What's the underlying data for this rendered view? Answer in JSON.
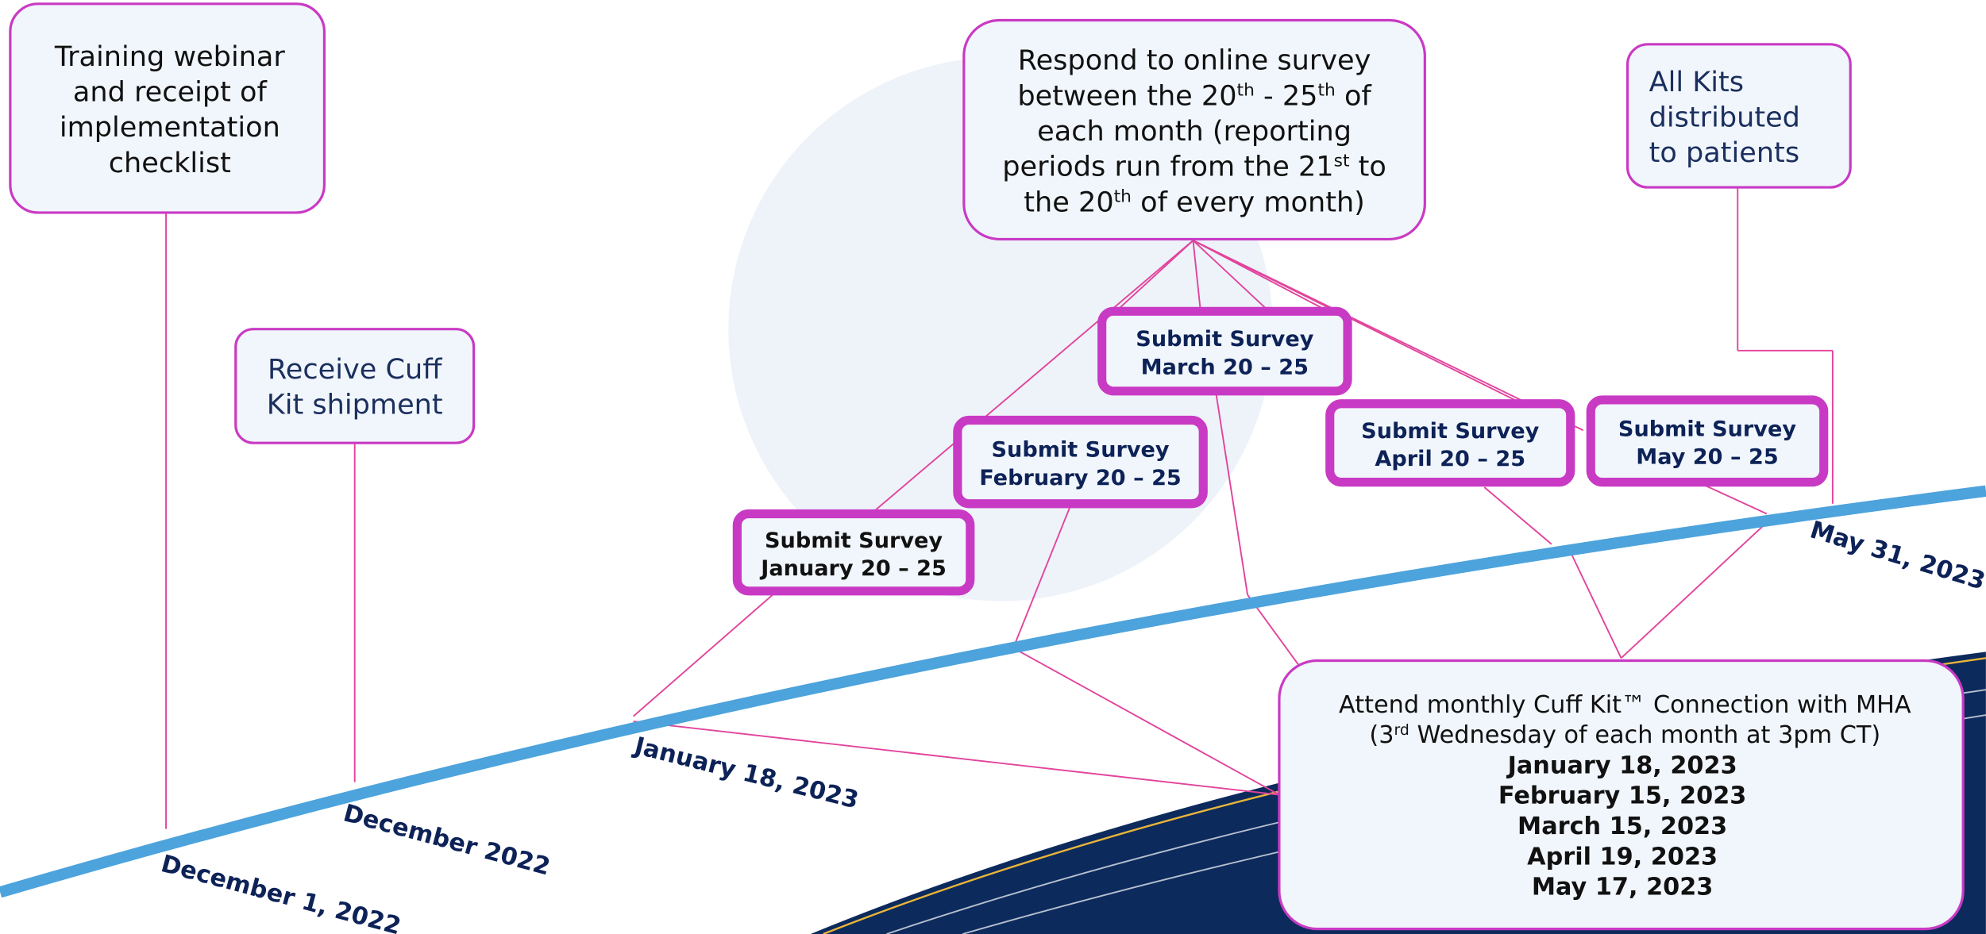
{
  "training": {
    "lines": [
      "Training webinar",
      "and receipt of",
      "implementation",
      "checklist"
    ]
  },
  "shipment": {
    "lines": [
      "Receive Cuff",
      "Kit shipment"
    ]
  },
  "survey_info": {
    "lines": [
      [
        "Respond to online survey"
      ],
      [
        "between the 20",
        "th",
        " - 25",
        "th",
        " of"
      ],
      [
        "each month (reporting"
      ],
      [
        "periods run from the 21",
        "st",
        " to"
      ],
      [
        "the 20",
        "th",
        " of every month)"
      ]
    ]
  },
  "kits": {
    "lines": [
      "All Kits",
      "distributed",
      "to patients"
    ]
  },
  "submissions": [
    {
      "title": "Submit Survey",
      "period": "January 20 – 25"
    },
    {
      "title": "Submit Survey",
      "period": "February 20 – 25"
    },
    {
      "title": "Submit Survey",
      "period": "March 20 – 25"
    },
    {
      "title": "Submit Survey",
      "period": "April 20 – 25"
    },
    {
      "title": "Submit Survey",
      "period": "May 20 – 25"
    }
  ],
  "connection": {
    "lines": [
      [
        "Attend monthly Cuff Kit™ Connection with MHA"
      ],
      [
        "(3",
        "rd",
        " Wednesday of each month at 3pm CT)"
      ]
    ],
    "dates": [
      "January 18, 2023",
      "February 15, 2023",
      "March 15, 2023",
      "April 19, 2023",
      "May 17, 2023"
    ]
  },
  "timeline_labels": [
    "December 1, 2022",
    "December 2022",
    "January 18, 2023",
    "May 31, 2023"
  ]
}
